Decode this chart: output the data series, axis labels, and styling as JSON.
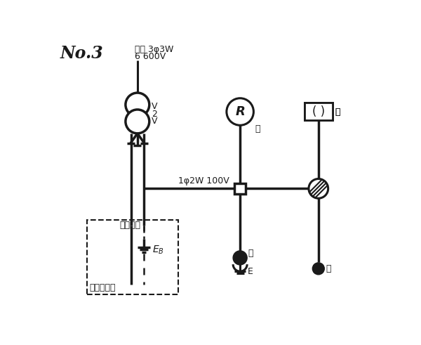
{
  "title": "No.3",
  "source_line1": "電源 3φ3W",
  "source_line2": "6 600V",
  "voltage_label": "V\n2\nV",
  "wire_label": "1φ2W 100V",
  "ground_label": "E",
  "ground_sub": "B",
  "ground_note": "施工省略",
  "other_load": "他の負荷へ",
  "label_i_r": "イ",
  "label_ro_box": "ロ",
  "label_ro_outlet": "ロ",
  "label_i_bottom": "イ",
  "label_e": "E",
  "bg_color": "#ffffff",
  "line_color": "#1a1a1a",
  "lw": 2.2
}
